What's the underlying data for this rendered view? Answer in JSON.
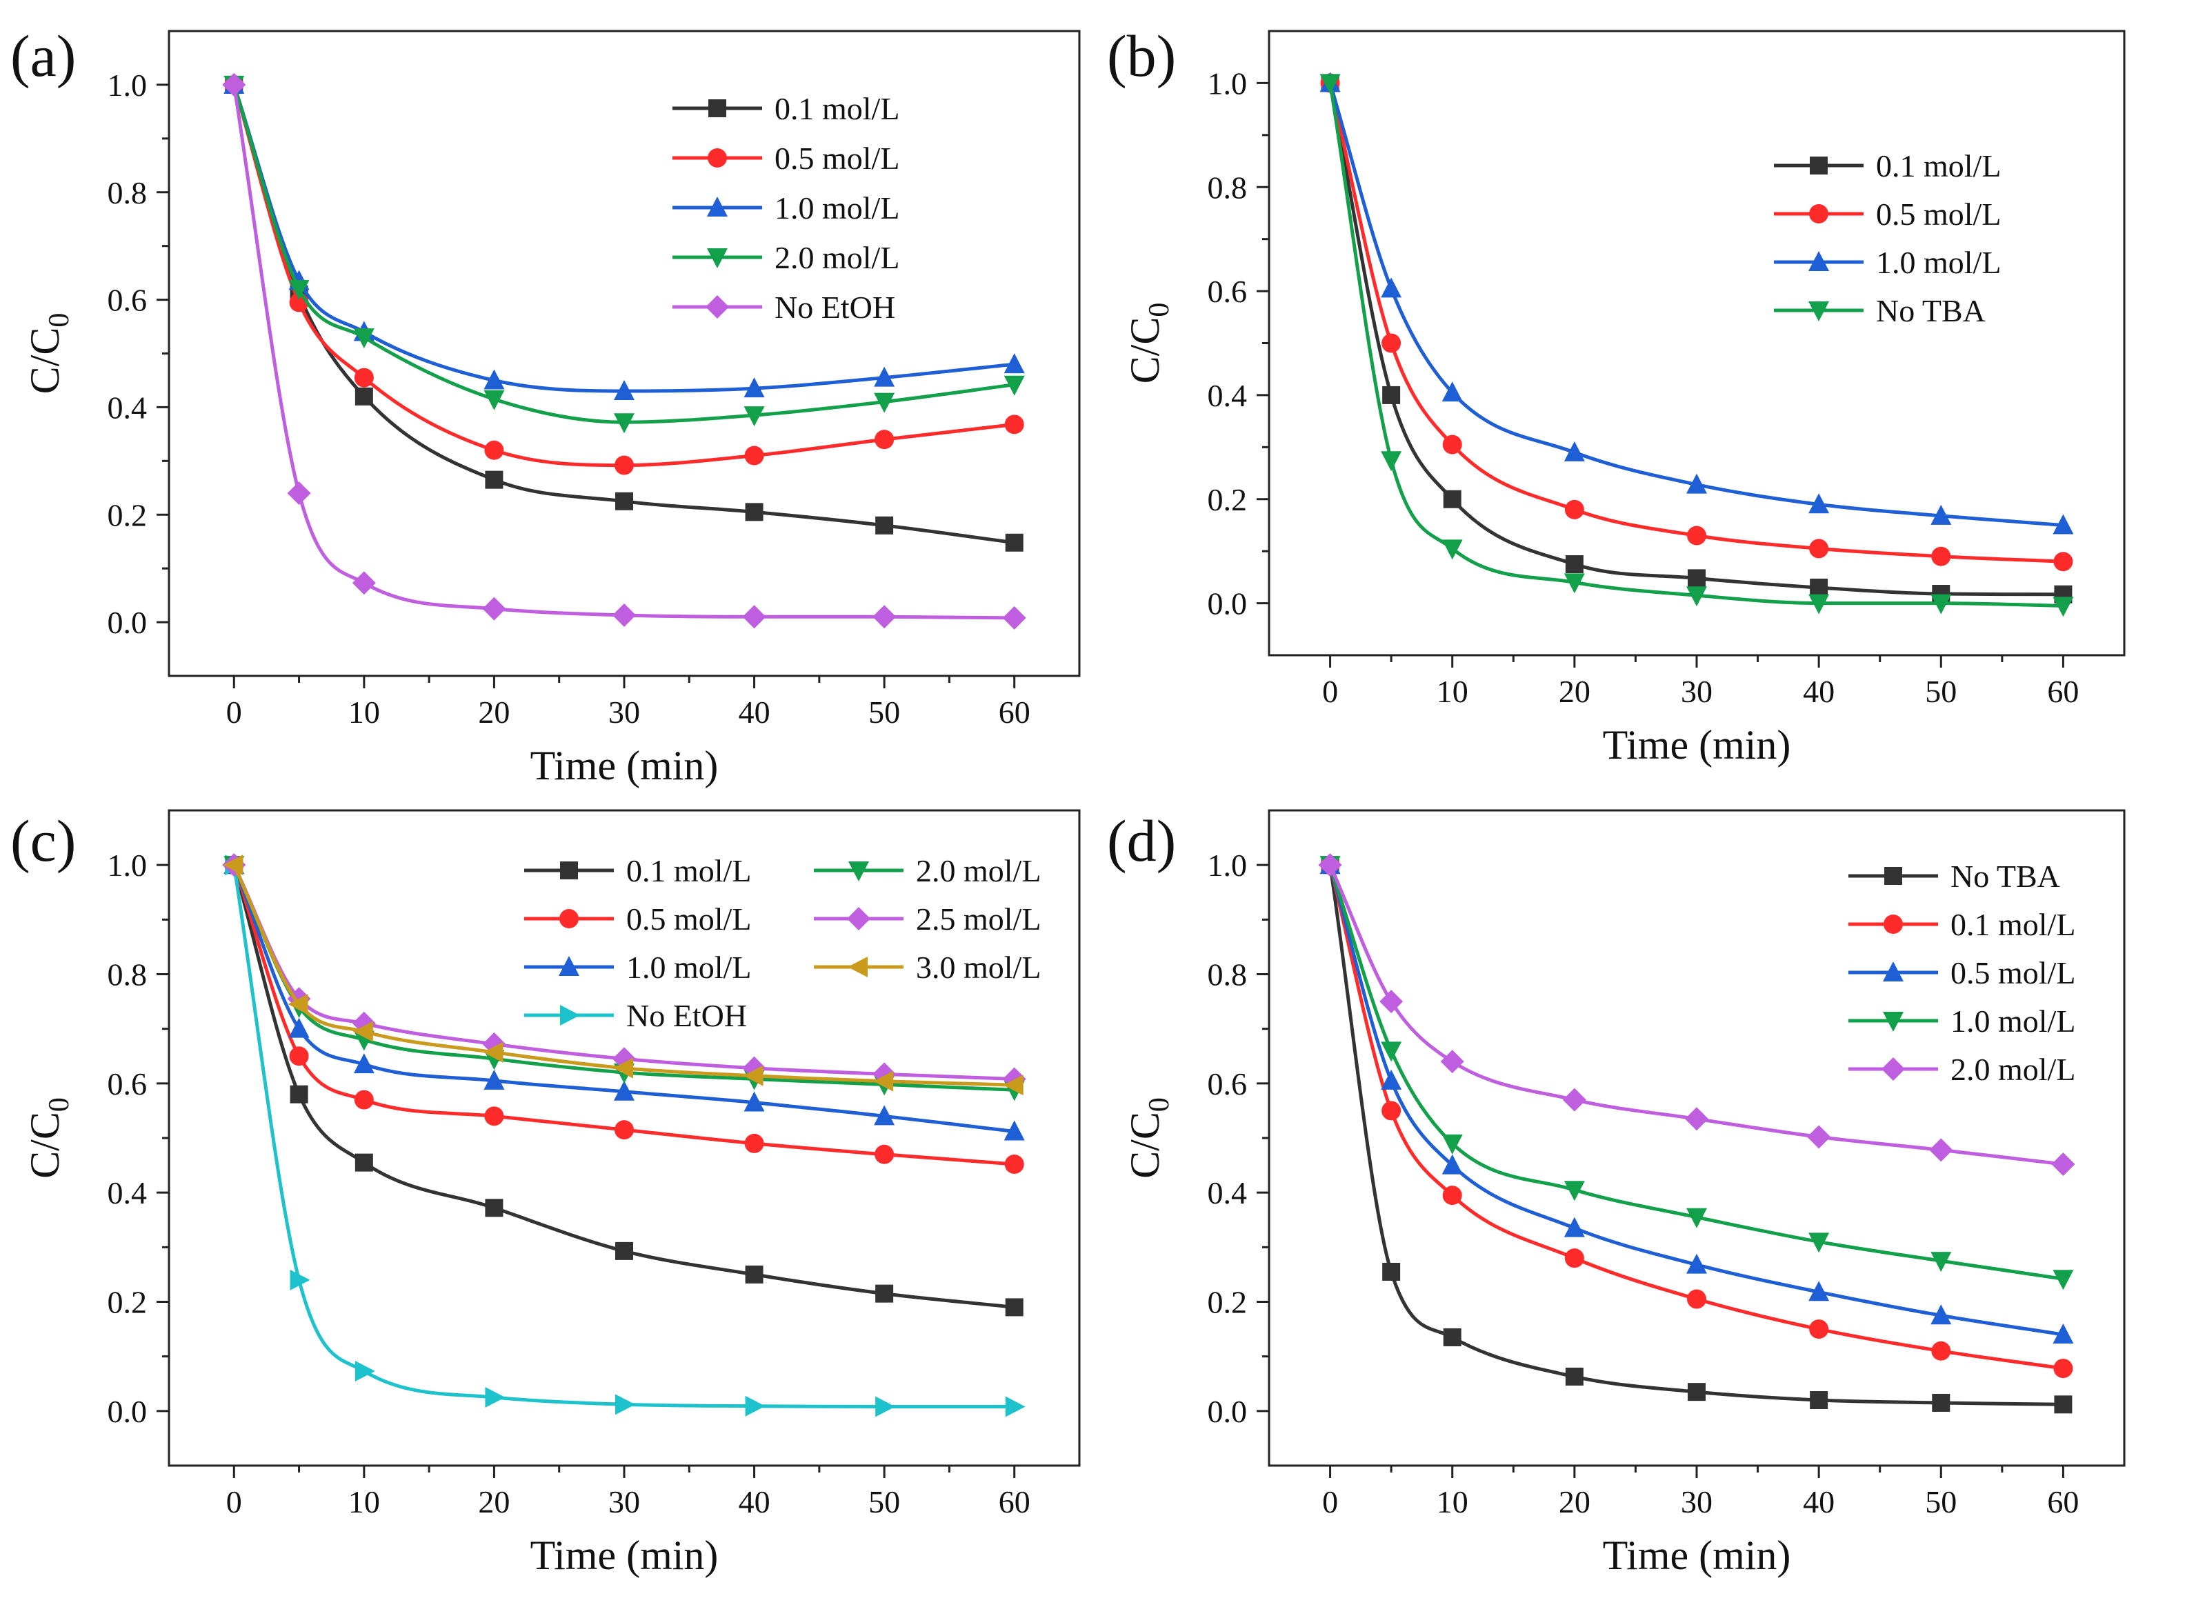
{
  "chart_data": [
    {
      "label": "(a)",
      "type": "line",
      "xlabel": "Time (min)",
      "ylabel": "C/C",
      "ylabel_sub": "0",
      "xlim": [
        -5,
        65
      ],
      "ylim": [
        -0.1,
        1.1
      ],
      "xticks": [
        0,
        10,
        20,
        30,
        40,
        50,
        60
      ],
      "yticks": [
        "0.0",
        "0.2",
        "0.4",
        "0.6",
        "0.8",
        "1.0"
      ],
      "x": [
        0,
        5,
        10,
        20,
        30,
        40,
        50,
        60
      ],
      "legend_position": "top-right",
      "series": [
        {
          "name": "0.1 mol/L",
          "color": "#333333",
          "marker": "square",
          "values": [
            1.0,
            0.61,
            0.42,
            0.265,
            0.225,
            0.205,
            0.18,
            0.148
          ]
        },
        {
          "name": "0.5 mol/L",
          "color": "#ff2a2a",
          "marker": "circle",
          "values": [
            1.0,
            0.595,
            0.455,
            0.32,
            0.292,
            0.31,
            0.34,
            0.368
          ]
        },
        {
          "name": "1.0 mol/L",
          "color": "#1f5fd6",
          "marker": "triangle-up",
          "values": [
            1.0,
            0.635,
            0.54,
            0.45,
            0.43,
            0.435,
            0.455,
            0.48
          ]
        },
        {
          "name": "2.0 mol/L",
          "color": "#13a04a",
          "marker": "triangle-down",
          "values": [
            1.0,
            0.62,
            0.53,
            0.415,
            0.372,
            0.385,
            0.41,
            0.442
          ]
        },
        {
          "name": "No EtOH",
          "color": "#c05ee0",
          "marker": "diamond",
          "values": [
            1.0,
            0.24,
            0.073,
            0.025,
            0.013,
            0.01,
            0.01,
            0.008
          ]
        }
      ]
    },
    {
      "label": "(b)",
      "type": "line",
      "xlabel": "Time (min)",
      "ylabel": "C/C",
      "ylabel_sub": "0",
      "xlim": [
        -5,
        65
      ],
      "ylim": [
        -0.1,
        1.1
      ],
      "xticks": [
        0,
        10,
        20,
        30,
        40,
        50,
        60
      ],
      "yticks": [
        "0.0",
        "0.2",
        "0.4",
        "0.6",
        "0.8",
        "1.0"
      ],
      "x": [
        0,
        5,
        10,
        20,
        30,
        40,
        50,
        60
      ],
      "legend_position": "top-right",
      "series": [
        {
          "name": "0.1 mol/L",
          "color": "#333333",
          "marker": "square",
          "values": [
            1.0,
            0.4,
            0.2,
            0.075,
            0.048,
            0.03,
            0.018,
            0.017
          ]
        },
        {
          "name": "0.5 mol/L",
          "color": "#ff2a2a",
          "marker": "circle",
          "values": [
            1.0,
            0.5,
            0.305,
            0.18,
            0.13,
            0.105,
            0.09,
            0.08
          ]
        },
        {
          "name": "1.0 mol/L",
          "color": "#1f5fd6",
          "marker": "triangle-up",
          "values": [
            1.0,
            0.605,
            0.405,
            0.29,
            0.228,
            0.19,
            0.168,
            0.15
          ]
        },
        {
          "name": "No TBA",
          "color": "#13a04a",
          "marker": "triangle-down",
          "values": [
            1.0,
            0.275,
            0.105,
            0.04,
            0.015,
            0.0,
            0.0,
            -0.005
          ]
        }
      ]
    },
    {
      "label": "(c)",
      "type": "line",
      "xlabel": "Time (min)",
      "ylabel": "C/C",
      "ylabel_sub": "0",
      "xlim": [
        -5,
        65
      ],
      "ylim": [
        -0.1,
        1.1
      ],
      "xticks": [
        0,
        10,
        20,
        30,
        40,
        50,
        60
      ],
      "yticks": [
        "0.0",
        "0.2",
        "0.4",
        "0.6",
        "0.8",
        "1.0"
      ],
      "x": [
        0,
        5,
        10,
        20,
        30,
        40,
        50,
        60
      ],
      "legend_position": "top-right (two columns)",
      "series": [
        {
          "name": "0.1 mol/L",
          "color": "#333333",
          "marker": "square",
          "values": [
            1.0,
            0.58,
            0.455,
            0.372,
            0.293,
            0.25,
            0.215,
            0.19
          ]
        },
        {
          "name": "0.5 mol/L",
          "color": "#ff2a2a",
          "marker": "circle",
          "values": [
            1.0,
            0.65,
            0.57,
            0.54,
            0.515,
            0.49,
            0.47,
            0.452
          ]
        },
        {
          "name": "1.0 mol/L",
          "color": "#1f5fd6",
          "marker": "triangle-up",
          "values": [
            1.0,
            0.7,
            0.635,
            0.605,
            0.585,
            0.565,
            0.54,
            0.512
          ]
        },
        {
          "name": "No EtOH",
          "color": "#1ec2cc",
          "marker": "triangle-right",
          "values": [
            1.0,
            0.24,
            0.073,
            0.025,
            0.012,
            0.009,
            0.008,
            0.008
          ]
        },
        {
          "name": "2.0 mol/L",
          "color": "#13a04a",
          "marker": "triangle-down",
          "values": [
            1.0,
            0.74,
            0.68,
            0.645,
            0.62,
            0.608,
            0.598,
            0.588
          ]
        },
        {
          "name": "2.5 mol/L",
          "color": "#c05ee0",
          "marker": "diamond",
          "values": [
            1.0,
            0.755,
            0.71,
            0.672,
            0.645,
            0.628,
            0.617,
            0.608
          ]
        },
        {
          "name": "3.0 mol/L",
          "color": "#c99a1c",
          "marker": "triangle-left",
          "values": [
            1.0,
            0.745,
            0.695,
            0.657,
            0.628,
            0.614,
            0.604,
            0.597
          ]
        }
      ]
    },
    {
      "label": "(d)",
      "type": "line",
      "xlabel": "Time (min)",
      "ylabel": "C/C",
      "ylabel_sub": "0",
      "xlim": [
        -5,
        65
      ],
      "ylim": [
        -0.1,
        1.1
      ],
      "xticks": [
        0,
        10,
        20,
        30,
        40,
        50,
        60
      ],
      "yticks": [
        "0.0",
        "0.2",
        "0.4",
        "0.6",
        "0.8",
        "1.0"
      ],
      "x": [
        0,
        5,
        10,
        20,
        30,
        40,
        50,
        60
      ],
      "legend_position": "top-right",
      "series": [
        {
          "name": "No TBA",
          "color": "#333333",
          "marker": "square",
          "values": [
            1.0,
            0.255,
            0.135,
            0.063,
            0.035,
            0.02,
            0.015,
            0.012
          ]
        },
        {
          "name": "0.1 mol/L",
          "color": "#ff2a2a",
          "marker": "circle",
          "values": [
            1.0,
            0.55,
            0.395,
            0.28,
            0.205,
            0.15,
            0.11,
            0.078
          ]
        },
        {
          "name": "0.5 mol/L",
          "color": "#1f5fd6",
          "marker": "triangle-up",
          "values": [
            1.0,
            0.605,
            0.45,
            0.335,
            0.268,
            0.218,
            0.175,
            0.14
          ]
        },
        {
          "name": "1.0 mol/L",
          "color": "#13a04a",
          "marker": "triangle-down",
          "values": [
            1.0,
            0.66,
            0.49,
            0.405,
            0.355,
            0.31,
            0.275,
            0.242
          ]
        },
        {
          "name": "2.0 mol/L",
          "color": "#c05ee0",
          "marker": "diamond",
          "values": [
            1.0,
            0.75,
            0.64,
            0.57,
            0.535,
            0.502,
            0.478,
            0.452
          ]
        }
      ]
    }
  ]
}
